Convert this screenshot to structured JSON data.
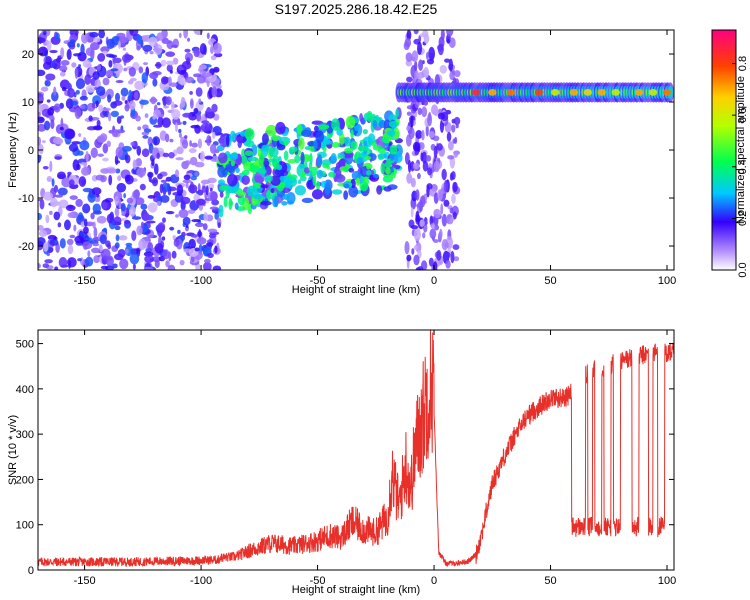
{
  "title": "S197.2025.286.18.42.E25",
  "chart_data": [
    {
      "type": "heatmap",
      "xlabel": "Height of straight line (km)",
      "ylabel": "Frequency (Hz)",
      "xlim": [
        -170,
        103
      ],
      "ylim": [
        -25,
        25
      ],
      "xticks": [
        -150,
        -100,
        -50,
        0,
        50,
        100
      ],
      "yticks": [
        -20,
        -10,
        0,
        10,
        20
      ],
      "colorbar": {
        "label": "Normalized spectral amplitude",
        "range": [
          0,
          0.93
        ],
        "ticks": [
          0,
          0.2,
          0.4,
          0.6,
          0.8
        ],
        "tick_labels": [
          "0.0",
          "0.2",
          "0.4",
          "0.6",
          "0.8"
        ]
      },
      "features": [
        {
          "name": "background-noise",
          "x_range": [
            -170,
            -92
          ],
          "y_range": [
            -25,
            25
          ],
          "amplitude": 0.15
        },
        {
          "name": "noise-band",
          "x_range": [
            -92,
            -15
          ],
          "y_center_start": -5,
          "y_center_end": 0,
          "half_width": 8,
          "amplitude": 0.3
        },
        {
          "name": "plasma-band",
          "x_range": [
            -12,
            10
          ],
          "y_range": [
            -25,
            25
          ],
          "amplitude": 0.12
        },
        {
          "name": "signal-line",
          "x_range": [
            -15,
            102
          ],
          "y_center": 12,
          "half_width": 1.5,
          "amplitude": 0.85
        }
      ]
    },
    {
      "type": "line",
      "xlabel": "Height of straight line (km)",
      "ylabel": "SNR (10 * v/v)",
      "xlim": [
        -170,
        103
      ],
      "ylim": [
        0,
        530
      ],
      "xticks": [
        -150,
        -100,
        -50,
        0,
        50,
        100
      ],
      "yticks": [
        0,
        100,
        200,
        300,
        400,
        500
      ],
      "color": "#e8302a",
      "series": [
        {
          "name": "SNR",
          "x": [
            -170,
            -150,
            -130,
            -110,
            -95,
            -85,
            -80,
            -70,
            -60,
            -50,
            -45,
            -40,
            -35,
            -30,
            -25,
            -20,
            -18,
            -15,
            -12,
            -10,
            -8,
            -5,
            -3,
            0,
            2,
            5,
            10,
            15,
            18,
            20,
            25,
            30,
            35,
            40,
            45,
            50,
            55,
            58,
            60,
            65,
            70,
            75,
            80,
            85,
            90,
            95,
            100,
            103
          ],
          "y": [
            18,
            18,
            18,
            20,
            22,
            25,
            35,
            50,
            45,
            55,
            65,
            60,
            90,
            75,
            70,
            100,
            180,
            120,
            200,
            150,
            230,
            280,
            330,
            350,
            40,
            15,
            15,
            20,
            35,
            70,
            190,
            250,
            300,
            340,
            360,
            380,
            380,
            385,
            410,
            430,
            445,
            450,
            460,
            470,
            475,
            480,
            480,
            480
          ]
        }
      ],
      "dropout_level": 95,
      "dropouts": [
        [
          59,
          65
        ],
        [
          66,
          68
        ],
        [
          69,
          72
        ],
        [
          73,
          76
        ],
        [
          77,
          80
        ],
        [
          85,
          88
        ],
        [
          92,
          94
        ],
        [
          96,
          99
        ]
      ]
    }
  ]
}
